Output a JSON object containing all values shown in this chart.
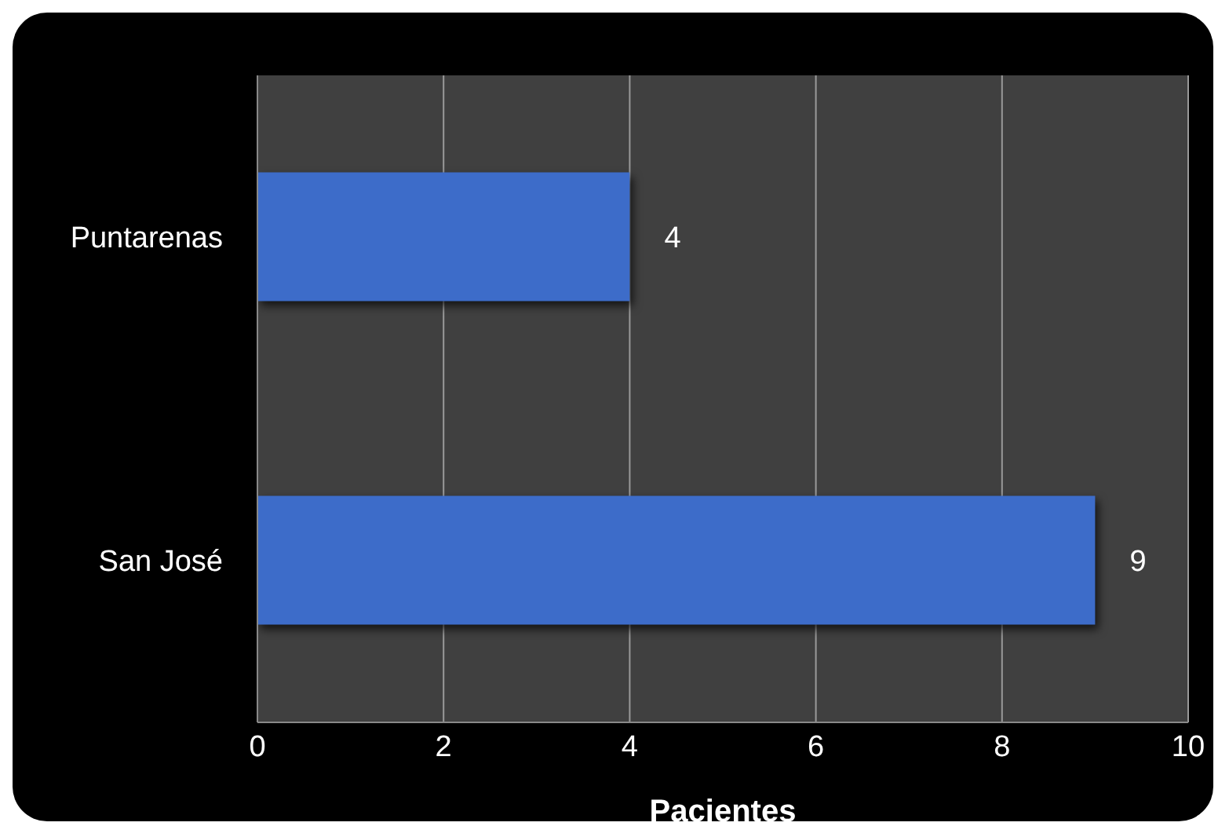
{
  "chart_data": {
    "type": "bar",
    "orientation": "horizontal",
    "xlabel": "Pacientes",
    "categories": [
      "Puntarenas",
      "San José"
    ],
    "values": [
      4,
      9
    ],
    "color": "#3d6cc9",
    "xlim": [
      0,
      10
    ],
    "xticks": [
      0,
      2,
      4,
      6,
      8,
      10
    ],
    "grid": "x",
    "data_labels": true,
    "legend": false
  }
}
